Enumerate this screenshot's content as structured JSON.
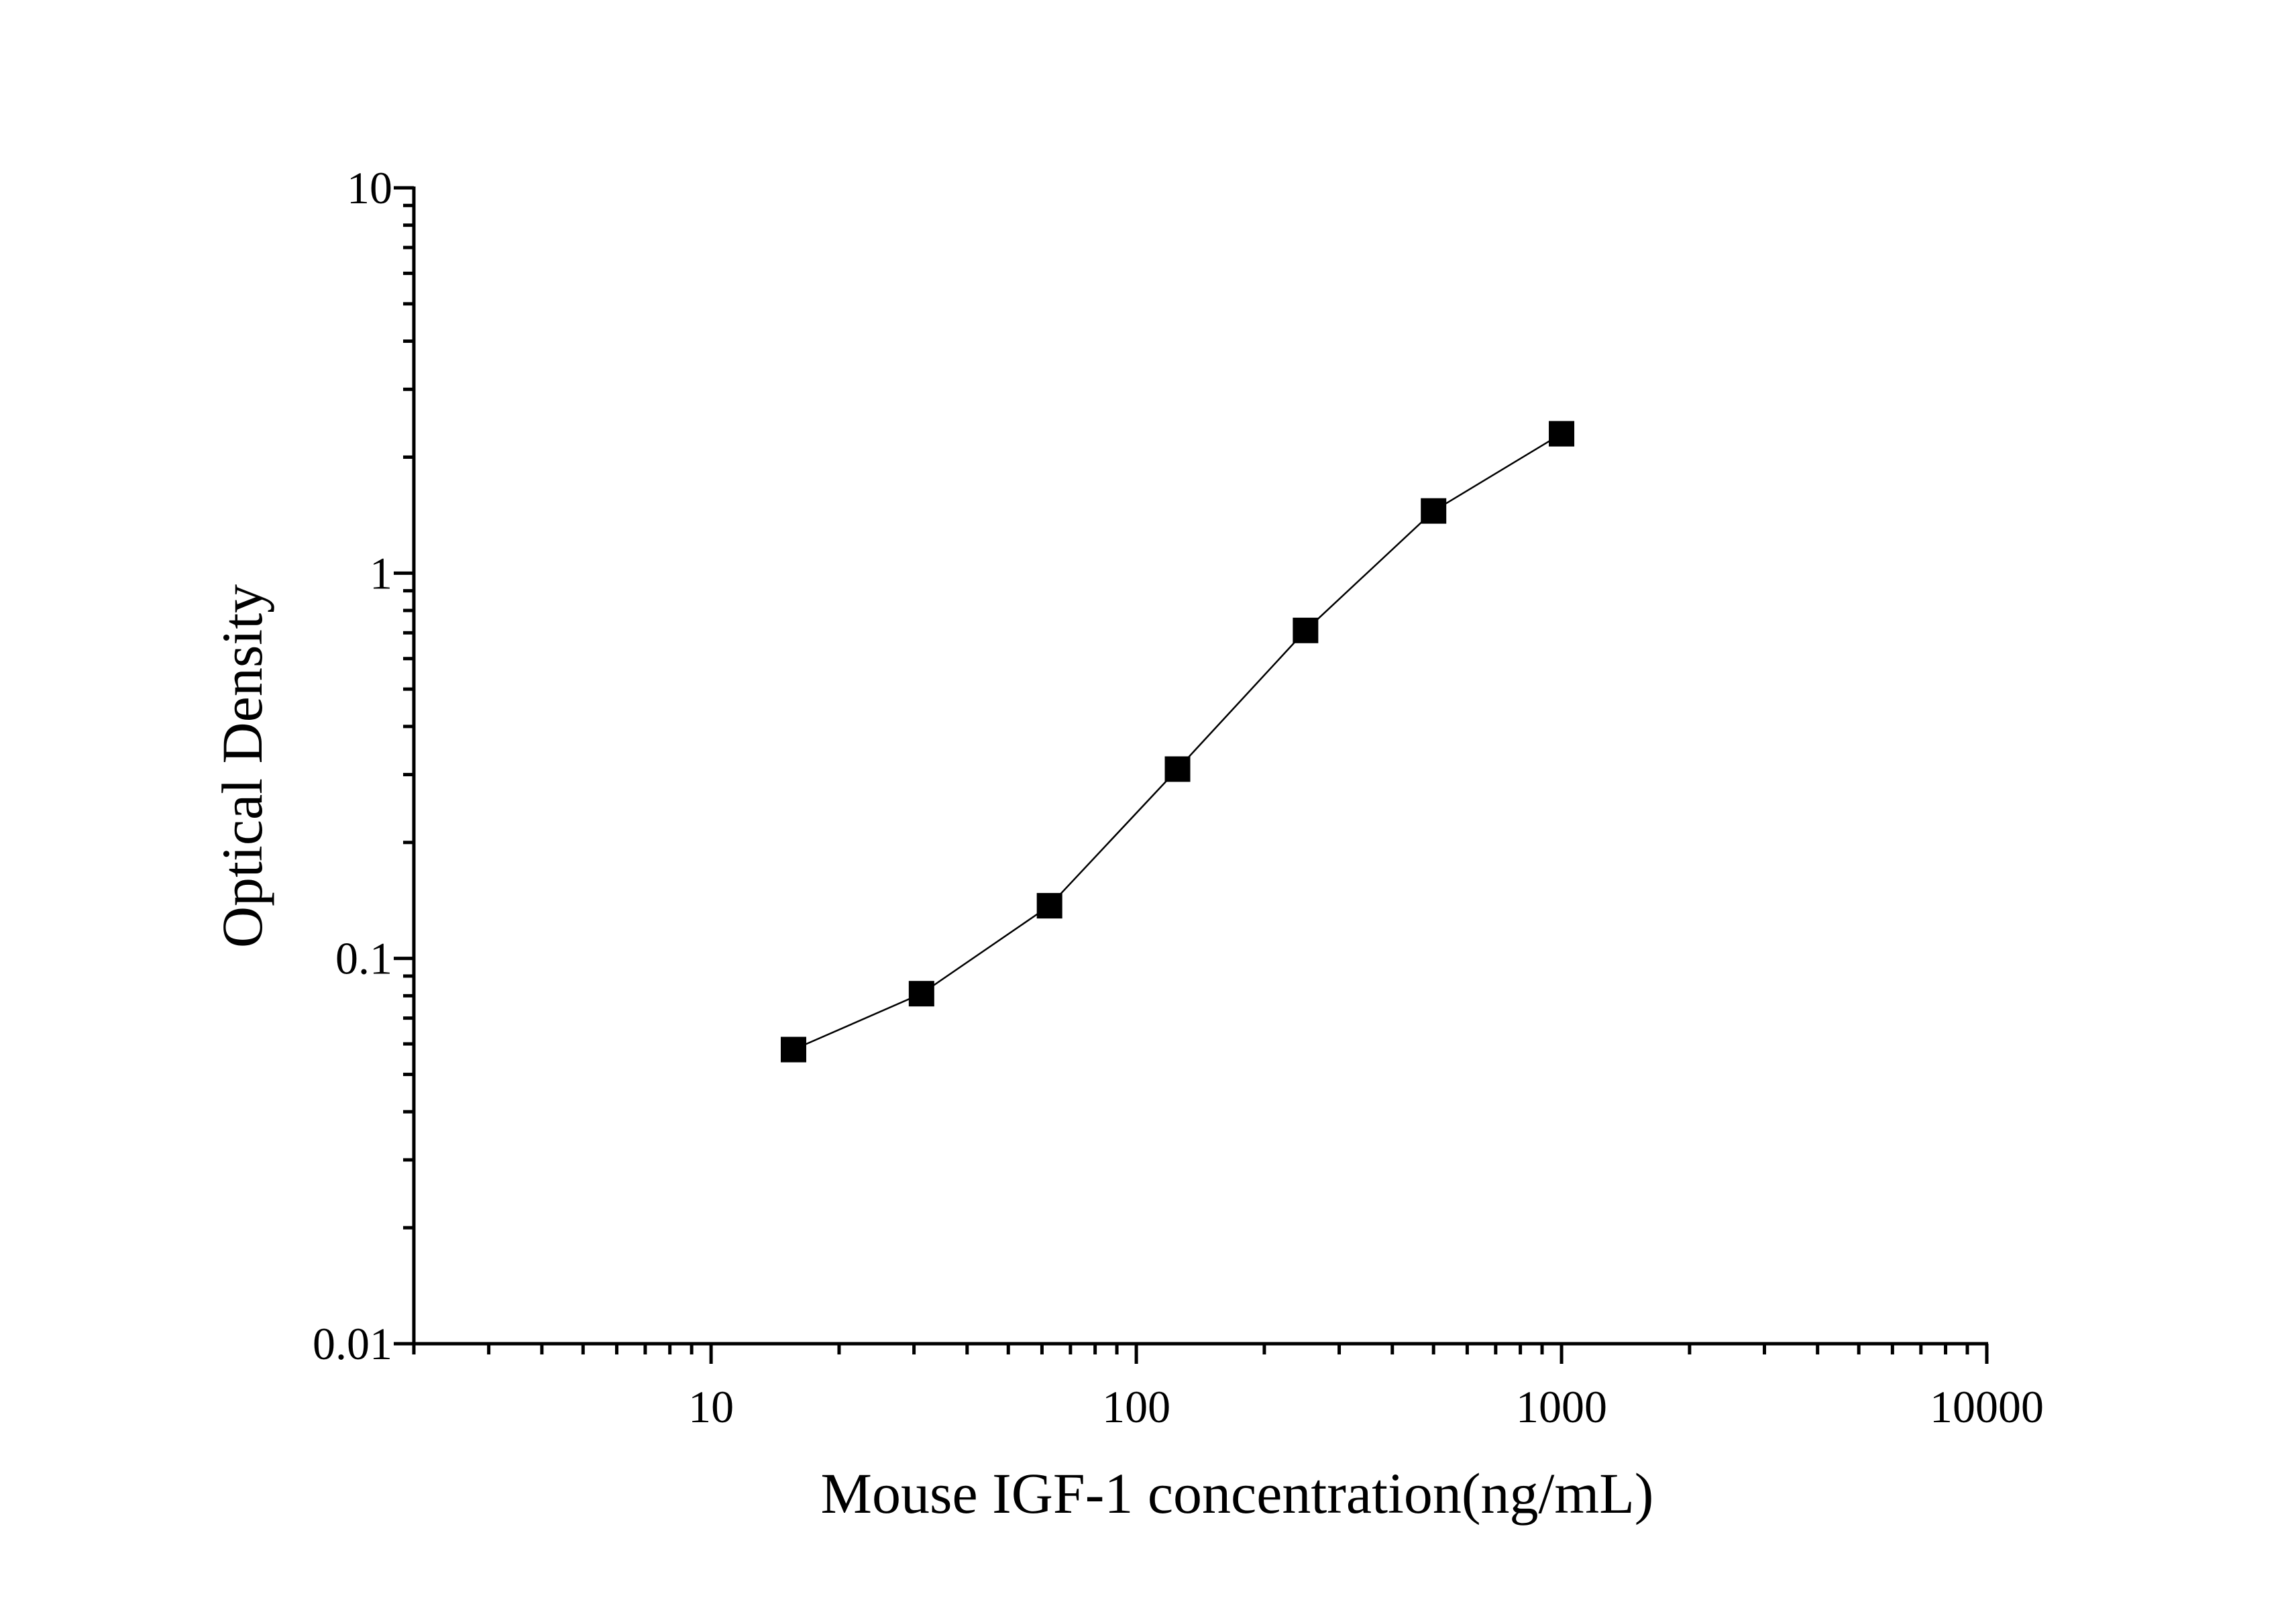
{
  "chart_data": {
    "type": "scatter",
    "title": "",
    "xlabel": "Mouse IGF-1 concentration(ng/mL)",
    "ylabel": "Optical Density",
    "x_scale": "log",
    "y_scale": "log",
    "xlim": [
      2,
      10000
    ],
    "ylim": [
      0.01,
      10
    ],
    "x_ticks": [
      {
        "value": 10,
        "label": "10"
      },
      {
        "value": 100,
        "label": "100"
      },
      {
        "value": 1000,
        "label": "1000"
      },
      {
        "value": 10000,
        "label": "10000"
      }
    ],
    "y_ticks": [
      {
        "value": 0.01,
        "label": "0.01"
      },
      {
        "value": 0.1,
        "label": "0.1"
      },
      {
        "value": 1,
        "label": "1"
      },
      {
        "value": 10,
        "label": "10"
      }
    ],
    "grid": false,
    "legend": "none",
    "marker_color": "#000000",
    "line_color": "#000000",
    "marker": "square",
    "series": [
      {
        "x": [
          15.625,
          31.25,
          62.5,
          125,
          250,
          500,
          1000
        ],
        "y": [
          0.058,
          0.081,
          0.137,
          0.31,
          0.71,
          1.45,
          2.3
        ]
      }
    ]
  }
}
